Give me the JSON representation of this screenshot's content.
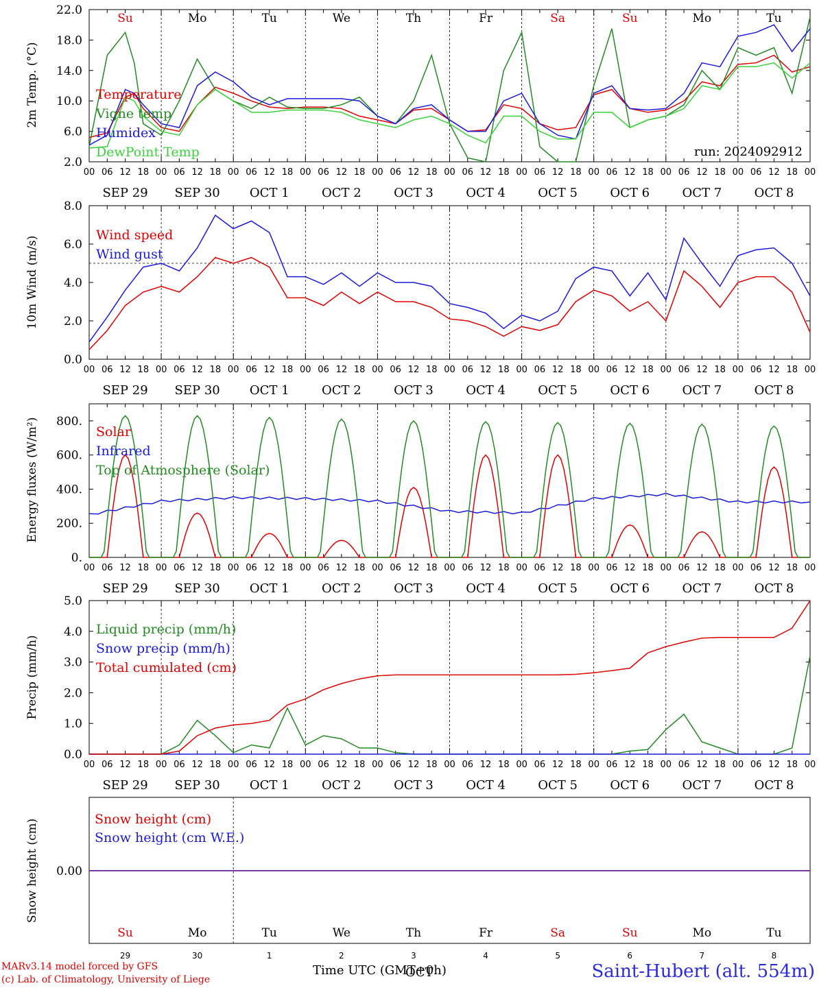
{
  "chart_data": [
    {
      "type": "line",
      "ylabel": "2m Temp. (°C)",
      "yticks": [
        "22.0",
        "18.0",
        "14.0",
        "10.0",
        "6.0",
        "2.0"
      ],
      "ylim": [
        2,
        22
      ],
      "day_labels": [
        "Su",
        "Mo",
        "Tu",
        "We",
        "Th",
        "Fr",
        "Sa",
        "Su",
        "Mo",
        "Tu"
      ],
      "date_labels": [
        "SEP 29",
        "SEP 30",
        "OCT  1",
        "OCT  2",
        "OCT  3",
        "OCT  4",
        "OCT  5",
        "OCT  6",
        "OCT  7",
        "OCT  8"
      ],
      "run_label": "run: 2024092912",
      "x_hours": [
        0,
        6,
        12,
        15,
        18,
        24,
        30,
        36,
        42,
        48,
        54,
        60,
        66,
        72,
        78,
        84,
        90,
        96,
        102,
        108,
        114,
        120,
        126,
        132,
        138,
        144,
        150,
        156,
        162,
        168,
        174,
        180,
        186,
        192,
        198,
        204,
        210,
        216,
        222,
        228,
        234,
        240
      ],
      "series": [
        {
          "name": "Temperature",
          "color": "#e00000",
          "values": [
            5.2,
            5.8,
            10.5,
            11.0,
            9.0,
            6.5,
            6.0,
            9.5,
            11.8,
            11.0,
            10.0,
            9.2,
            9.0,
            9.2,
            9.2,
            9.0,
            8.0,
            7.5,
            7.0,
            8.8,
            9.0,
            7.5,
            6.0,
            6.2,
            9.5,
            9.0,
            7.0,
            6.2,
            6.5,
            10.8,
            11.5,
            9.0,
            8.5,
            8.8,
            10.0,
            12.5,
            12.0,
            14.8,
            15.0,
            16.0,
            13.8,
            14.5
          ]
        },
        {
          "name": "Vigne temp",
          "color": "#228b22",
          "values": [
            4.0,
            16.0,
            19.0,
            15.0,
            7.0,
            5.5,
            10.0,
            15.5,
            11.5,
            10.0,
            9.0,
            10.5,
            9.2,
            9.0,
            9.0,
            9.5,
            10.5,
            8.0,
            7.0,
            10.0,
            16.0,
            7.0,
            2.5,
            2.0,
            14.0,
            19.0,
            4.0,
            2.0,
            2.0,
            12.0,
            19.5,
            6.5,
            7.5,
            8.0,
            9.5,
            14.0,
            11.5,
            17.0,
            16.0,
            17.0,
            11.0,
            21.0
          ]
        },
        {
          "name": "Humidex",
          "color": "#1a1adf",
          "values": [
            4.2,
            5.5,
            11.5,
            11.0,
            9.5,
            7.0,
            6.5,
            12.0,
            13.8,
            12.5,
            10.5,
            9.5,
            10.3,
            10.3,
            10.3,
            10.3,
            10.0,
            8.0,
            7.0,
            9.0,
            9.5,
            7.5,
            6.0,
            6.0,
            10.0,
            11.0,
            7.0,
            5.5,
            5.0,
            11.0,
            12.0,
            9.0,
            8.8,
            9.0,
            11.0,
            15.0,
            14.5,
            18.5,
            19.0,
            20.0,
            16.5,
            19.5
          ]
        },
        {
          "name": "DewPoint Temp",
          "color": "#3ad23a",
          "values": [
            3.8,
            4.0,
            10.5,
            10.0,
            8.0,
            6.0,
            5.5,
            9.5,
            11.5,
            10.0,
            8.5,
            8.5,
            8.8,
            8.8,
            8.8,
            8.5,
            7.5,
            7.0,
            6.5,
            7.5,
            8.0,
            7.0,
            5.5,
            4.5,
            8.0,
            8.0,
            6.0,
            5.0,
            5.0,
            8.5,
            8.5,
            6.5,
            7.5,
            8.0,
            9.0,
            12.0,
            11.5,
            14.5,
            14.5,
            15.0,
            13.0,
            15.0
          ]
        }
      ],
      "legend_position": "left"
    },
    {
      "type": "line",
      "ylabel": "10m Wind (m/s)",
      "yticks": [
        "8.0",
        "6.0",
        "4.0",
        "2.0",
        "0.0"
      ],
      "ylim": [
        0,
        8
      ],
      "date_labels": [
        "SEP 29",
        "SEP 30",
        "OCT  1",
        "OCT  2",
        "OCT  3",
        "OCT  4",
        "OCT  5",
        "OCT  6",
        "OCT  7",
        "OCT  8"
      ],
      "reference_line": 5.0,
      "x_hours": [
        0,
        6,
        12,
        18,
        24,
        30,
        36,
        42,
        48,
        54,
        60,
        66,
        72,
        78,
        84,
        90,
        96,
        102,
        108,
        114,
        120,
        126,
        132,
        138,
        144,
        150,
        156,
        162,
        168,
        174,
        180,
        186,
        192,
        198,
        204,
        210,
        216,
        222,
        228,
        234,
        240
      ],
      "series": [
        {
          "name": "Wind speed",
          "color": "#e00000",
          "values": [
            0.5,
            1.5,
            2.8,
            3.5,
            3.8,
            3.5,
            4.3,
            5.3,
            5.0,
            5.3,
            4.8,
            3.2,
            3.2,
            2.8,
            3.5,
            2.9,
            3.5,
            3.0,
            3.0,
            2.7,
            2.1,
            2.0,
            1.7,
            1.2,
            1.7,
            1.5,
            1.8,
            3.0,
            3.6,
            3.3,
            2.5,
            3.0,
            2.0,
            4.6,
            3.8,
            2.7,
            4.0,
            4.3,
            4.3,
            3.5,
            1.4
          ]
        },
        {
          "name": "Wind gust",
          "color": "#1a1adf",
          "values": [
            0.9,
            2.2,
            3.6,
            4.8,
            5.0,
            4.6,
            5.8,
            7.5,
            6.8,
            7.2,
            6.6,
            4.3,
            4.3,
            3.9,
            4.5,
            3.8,
            4.5,
            4.0,
            4.0,
            3.8,
            2.9,
            2.7,
            2.4,
            1.6,
            2.3,
            2.0,
            2.5,
            4.2,
            4.8,
            4.6,
            3.3,
            4.5,
            3.1,
            6.3,
            5.0,
            3.8,
            5.4,
            5.7,
            5.8,
            5.0,
            3.3
          ]
        }
      ],
      "legend_position": "left"
    },
    {
      "type": "line",
      "ylabel": "Energy fluxes (W/m²)",
      "yticks": [
        "800.",
        "600.",
        "400.",
        "200.",
        "0."
      ],
      "ylim": [
        0,
        900
      ],
      "date_labels": [
        "SEP 29",
        "SEP 30",
        "OCT  1",
        "OCT  2",
        "OCT  3",
        "OCT  4",
        "OCT  5",
        "OCT  6",
        "OCT  7",
        "OCT  8"
      ],
      "series": [
        {
          "name": "Solar",
          "color": "#e00000",
          "daily_peak_wm2": [
            600,
            260,
            140,
            100,
            410,
            600,
            600,
            190,
            150,
            530
          ]
        },
        {
          "name": "Infrared",
          "color": "#1a1adf",
          "daily_level_wm2": [
            250,
            330,
            350,
            345,
            330,
            270,
            260,
            345,
            370,
            325
          ]
        },
        {
          "name": "Top of Atmosphere (Solar)",
          "color": "#228b22",
          "daily_peak_wm2": [
            830,
            830,
            820,
            810,
            800,
            795,
            790,
            785,
            780,
            770
          ]
        }
      ],
      "legend_position": "left"
    },
    {
      "type": "line",
      "ylabel": "Precip (mm/h)",
      "yticks": [
        "5.0",
        "4.0",
        "3.0",
        "2.0",
        "1.0",
        "0.0"
      ],
      "ylim": [
        0,
        5
      ],
      "date_labels": [
        "SEP 29",
        "SEP 30",
        "OCT  1",
        "OCT  2",
        "OCT  3",
        "OCT  4",
        "OCT  5",
        "OCT  6",
        "OCT  7",
        "OCT  8"
      ],
      "x_hours": [
        0,
        6,
        12,
        18,
        24,
        30,
        36,
        42,
        48,
        54,
        60,
        66,
        72,
        78,
        84,
        90,
        96,
        102,
        108,
        114,
        120,
        126,
        132,
        138,
        144,
        150,
        156,
        162,
        168,
        174,
        180,
        186,
        192,
        198,
        204,
        210,
        216,
        222,
        228,
        234,
        240
      ],
      "series": [
        {
          "name": "Liquid precip (mm/h)",
          "color": "#228b22",
          "values": [
            0,
            0,
            0,
            0,
            0,
            0.3,
            1.1,
            0.6,
            0.05,
            0.3,
            0.2,
            1.5,
            0.3,
            0.6,
            0.5,
            0.2,
            0.2,
            0.05,
            0,
            0,
            0,
            0,
            0,
            0,
            0,
            0,
            0,
            0,
            0,
            0,
            0.1,
            0.15,
            0.8,
            1.3,
            0.4,
            0.2,
            0,
            0,
            0,
            0.2,
            3.2
          ]
        },
        {
          "name": "Snow precip (mm/h)",
          "color": "#1a1adf",
          "values": [
            0,
            0,
            0,
            0,
            0,
            0,
            0,
            0,
            0,
            0,
            0,
            0,
            0,
            0,
            0,
            0,
            0,
            0,
            0,
            0,
            0,
            0,
            0,
            0,
            0,
            0,
            0,
            0,
            0,
            0,
            0,
            0,
            0,
            0,
            0,
            0,
            0,
            0,
            0,
            0,
            0
          ]
        },
        {
          "name": "Total cumulated (cm)",
          "color": "#e00000",
          "values": [
            0,
            0,
            0,
            0,
            0,
            0.1,
            0.6,
            0.85,
            0.95,
            1.0,
            1.1,
            1.6,
            1.8,
            2.1,
            2.3,
            2.45,
            2.55,
            2.58,
            2.58,
            2.58,
            2.58,
            2.58,
            2.58,
            2.58,
            2.58,
            2.58,
            2.58,
            2.6,
            2.65,
            2.72,
            2.8,
            3.3,
            3.5,
            3.65,
            3.78,
            3.8,
            3.8,
            3.8,
            3.8,
            4.1,
            5.0
          ]
        }
      ],
      "legend_position": "left"
    },
    {
      "type": "line",
      "ylabel": "Snow height (cm)",
      "yticks": [
        "0.00"
      ],
      "day_labels": [
        "Su",
        "Mo",
        "Tu",
        "We",
        "Th",
        "Fr",
        "Sa",
        "Su",
        "Mo",
        "Tu"
      ],
      "day_numbers": [
        "29",
        "30",
        "1",
        "2",
        "3",
        "4",
        "5",
        "6",
        "7",
        "8"
      ],
      "series": [
        {
          "name": "Snow height (cm)",
          "color": "#e00000",
          "value": 0.0
        },
        {
          "name": "Snow height (cm W.E.)",
          "color": "#1a1adf",
          "value": 0.0
        }
      ],
      "legend_position": "left"
    }
  ],
  "x_tick_labels": [
    "00",
    "06",
    "12",
    "18"
  ],
  "x_axis_end_label": "00",
  "weekend_color": "#e00000",
  "overlay_text": "OCT",
  "footer": {
    "model_line": "MARv3.14 model forced by GFS",
    "credit_line": "(c) Lab. of Climatology, University of Liege",
    "x_title": "Time UTC (GMT+0h)",
    "station": "Saint-Hubert (alt. 554m)"
  }
}
